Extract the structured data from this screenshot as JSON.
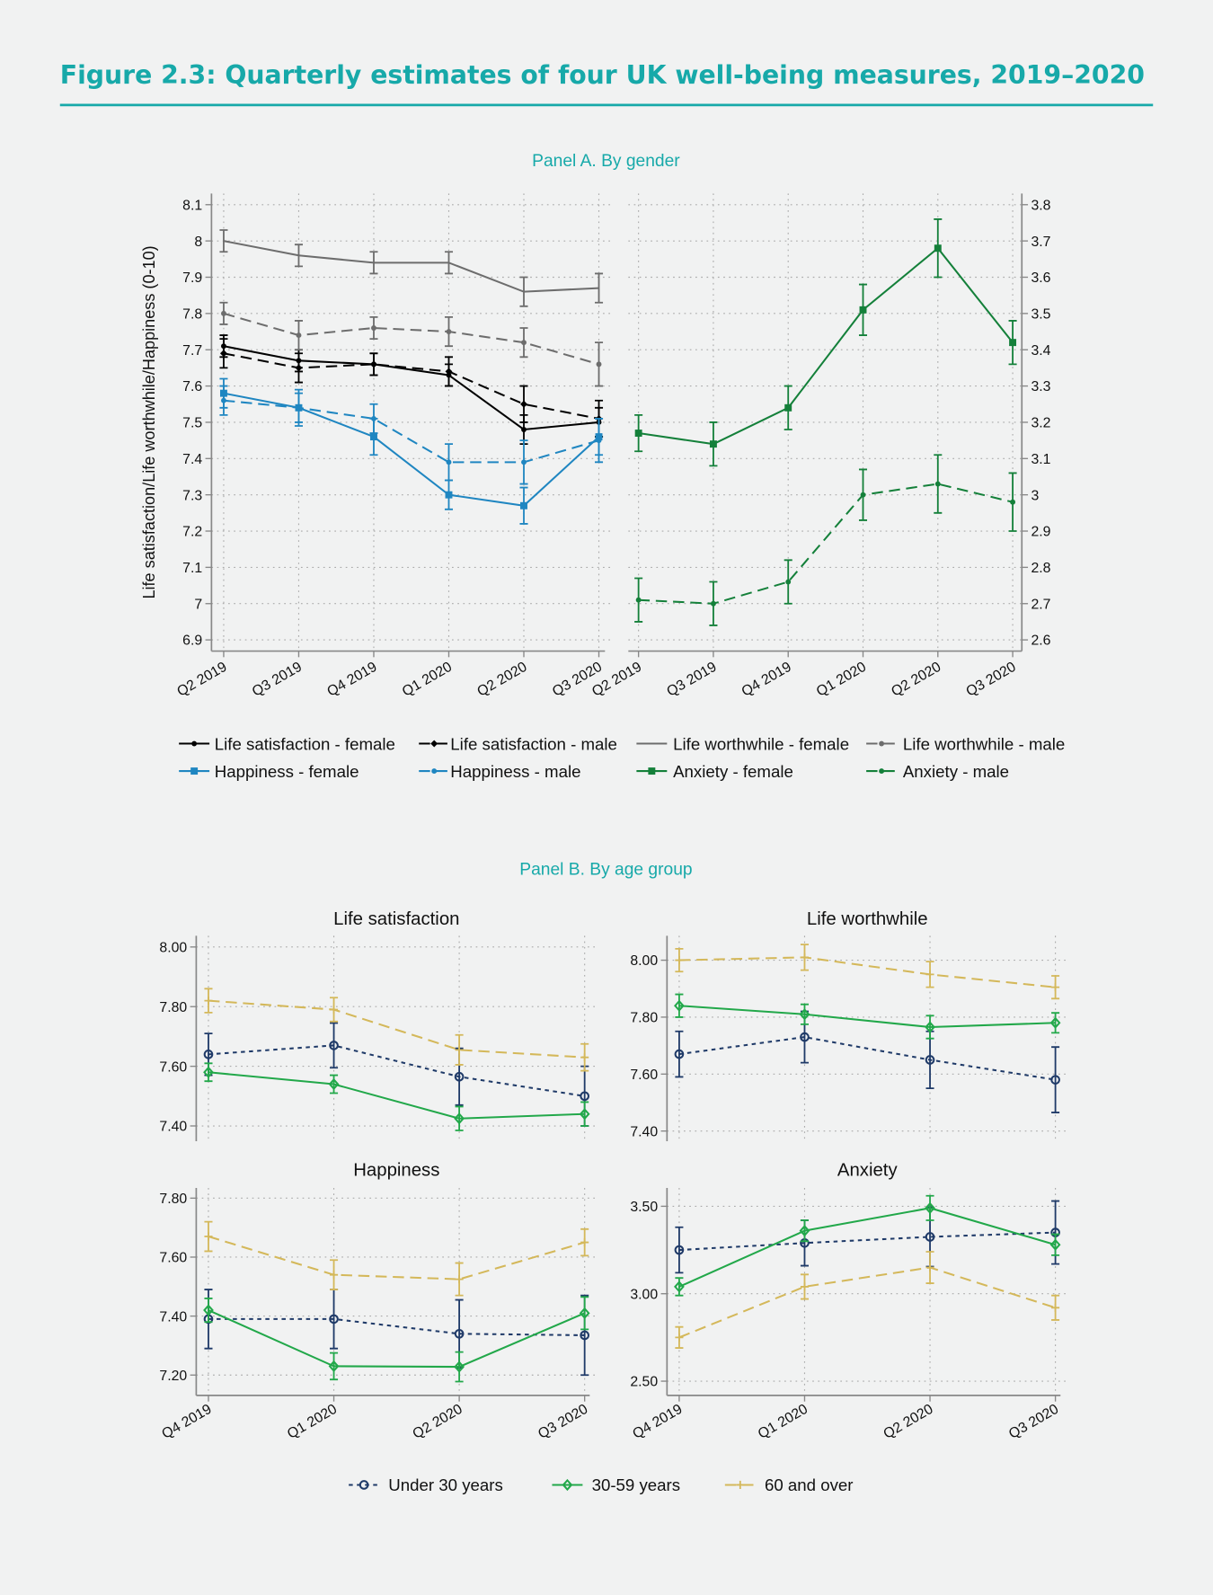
{
  "title": "Figure 2.3: Quarterly estimates of four UK well-being measures, 2019–2020",
  "panel_a_label": "Panel A. By gender",
  "panel_b_label": "Panel B. By age group",
  "colors": {
    "title": "#17a9a9",
    "background": "#f1f2f2"
  },
  "chart_data": [
    {
      "type": "line",
      "panel": "A",
      "title": "",
      "ylabel": "Life satisfaction/Life worthwhile/Happiness (0-10)",
      "yaxis_side": "left",
      "categories": [
        "Q2 2019",
        "Q3 2019",
        "Q4 2019",
        "Q1 2020",
        "Q2 2020",
        "Q3 2020"
      ],
      "yticks": [
        6.9,
        7,
        7.1,
        7.2,
        7.3,
        7.4,
        7.5,
        7.6,
        7.7,
        7.8,
        7.9,
        8,
        8.1
      ],
      "ylim": [
        6.9,
        8.1
      ],
      "grid": true,
      "series": [
        {
          "name": "Life satisfaction - female",
          "values": [
            7.71,
            7.67,
            7.66,
            7.63,
            7.48,
            7.5
          ],
          "errors": [
            0.03,
            0.03,
            0.03,
            0.03,
            0.04,
            0.04
          ],
          "color": "#000000",
          "dash": "solid",
          "marker": "dot"
        },
        {
          "name": "Life satisfaction - male",
          "values": [
            7.69,
            7.65,
            7.66,
            7.64,
            7.55,
            7.51
          ],
          "errors": [
            0.04,
            0.04,
            0.03,
            0.04,
            0.05,
            0.05
          ],
          "color": "#000000",
          "dash": "dashed",
          "marker": "diamond"
        },
        {
          "name": "Life worthwhile - female",
          "values": [
            8.0,
            7.96,
            7.94,
            7.94,
            7.86,
            7.87
          ],
          "errors": [
            0.03,
            0.03,
            0.03,
            0.03,
            0.04,
            0.04
          ],
          "color": "#6d6d6d",
          "dash": "solid",
          "marker": "none"
        },
        {
          "name": "Life worthwhile - male",
          "values": [
            7.8,
            7.74,
            7.76,
            7.75,
            7.72,
            7.66
          ],
          "errors": [
            0.03,
            0.04,
            0.03,
            0.04,
            0.04,
            0.06
          ],
          "color": "#6d6d6d",
          "dash": "dashed",
          "marker": "dot"
        },
        {
          "name": "Happiness - female",
          "values": [
            7.58,
            7.54,
            7.46,
            7.3,
            7.27,
            7.46
          ],
          "errors": [
            0.04,
            0.04,
            0.05,
            0.04,
            0.05,
            0.05
          ],
          "color": "#1f86c1",
          "dash": "solid",
          "marker": "square"
        },
        {
          "name": "Happiness - male",
          "values": [
            7.56,
            7.54,
            7.51,
            7.39,
            7.39,
            7.45
          ],
          "errors": [
            0.04,
            0.05,
            0.04,
            0.05,
            0.06,
            0.06
          ],
          "color": "#1f86c1",
          "dash": "dashed",
          "marker": "dot"
        }
      ]
    },
    {
      "type": "line",
      "panel": "A",
      "title": "",
      "yaxis_side": "right",
      "categories": [
        "Q2 2019",
        "Q3 2019",
        "Q4 2019",
        "Q1 2020",
        "Q2 2020",
        "Q3 2020"
      ],
      "yticks": [
        2.6,
        2.7,
        2.8,
        2.9,
        3,
        3.1,
        3.2,
        3.3,
        3.4,
        3.5,
        3.6,
        3.7,
        3.8
      ],
      "ylim": [
        2.6,
        3.8
      ],
      "grid": true,
      "series": [
        {
          "name": "Anxiety - female",
          "values": [
            3.17,
            3.14,
            3.24,
            3.51,
            3.68,
            3.42
          ],
          "errors": [
            0.05,
            0.06,
            0.06,
            0.07,
            0.08,
            0.06
          ],
          "color": "#14803a",
          "dash": "solid",
          "marker": "square"
        },
        {
          "name": "Anxiety - male",
          "values": [
            2.71,
            2.7,
            2.76,
            3.0,
            3.03,
            2.98
          ],
          "errors": [
            0.06,
            0.06,
            0.06,
            0.07,
            0.08,
            0.08
          ],
          "color": "#14803a",
          "dash": "dashed",
          "marker": "dot"
        }
      ]
    },
    {
      "type": "line",
      "panel": "B",
      "title": "Life satisfaction",
      "categories": [
        "Q4 2019",
        "Q1 2020",
        "Q2 2020",
        "Q3 2020"
      ],
      "yticks": [
        7.4,
        7.6,
        7.8,
        8.0
      ],
      "ytick_labels": [
        "7.40",
        "7.60",
        "7.80",
        "8.00"
      ],
      "ylim": [
        7.4,
        8.0
      ],
      "grid": true,
      "show_xlabels": false,
      "series": [
        {
          "name": "Under 30 years",
          "values": [
            7.64,
            7.67,
            7.565,
            7.5
          ],
          "errors": [
            0.07,
            0.075,
            0.095,
            0.1
          ],
          "color": "#1f3a68",
          "dash": "dotted",
          "marker": "circle-open"
        },
        {
          "name": "30-59 years",
          "values": [
            7.58,
            7.54,
            7.425,
            7.44
          ],
          "errors": [
            0.03,
            0.03,
            0.04,
            0.04
          ],
          "color": "#22a84a",
          "dash": "solid",
          "marker": "diamond-open"
        },
        {
          "name": "60 and over",
          "values": [
            7.82,
            7.79,
            7.655,
            7.63
          ],
          "errors": [
            0.04,
            0.04,
            0.05,
            0.045
          ],
          "color": "#d4b85a",
          "dash": "dashed",
          "marker": "plus"
        }
      ]
    },
    {
      "type": "line",
      "panel": "B",
      "title": "Life worthwhile",
      "categories": [
        "Q4 2019",
        "Q1 2020",
        "Q2 2020",
        "Q3 2020"
      ],
      "yticks": [
        7.4,
        7.6,
        7.8,
        8.0
      ],
      "ytick_labels": [
        "7.40",
        "7.60",
        "7.80",
        "8.00"
      ],
      "ylim": [
        7.4,
        8.0
      ],
      "grid": true,
      "show_xlabels": false,
      "series": [
        {
          "name": "Under 30 years",
          "values": [
            7.67,
            7.73,
            7.65,
            7.58
          ],
          "errors": [
            0.08,
            0.09,
            0.1,
            0.115
          ],
          "color": "#1f3a68",
          "dash": "dotted",
          "marker": "circle-open"
        },
        {
          "name": "30-59 years",
          "values": [
            7.84,
            7.81,
            7.765,
            7.78
          ],
          "errors": [
            0.04,
            0.035,
            0.04,
            0.035
          ],
          "color": "#22a84a",
          "dash": "solid",
          "marker": "diamond-open"
        },
        {
          "name": "60 and over",
          "values": [
            8.0,
            8.01,
            7.95,
            7.905
          ],
          "errors": [
            0.04,
            0.045,
            0.045,
            0.04
          ],
          "color": "#d4b85a",
          "dash": "dashed",
          "marker": "plus"
        }
      ]
    },
    {
      "type": "line",
      "panel": "B",
      "title": "Happiness",
      "categories": [
        "Q4 2019",
        "Q1 2020",
        "Q2 2020",
        "Q3 2020"
      ],
      "yticks": [
        7.2,
        7.4,
        7.6,
        7.8
      ],
      "ytick_labels": [
        "7.20",
        "7.40",
        "7.60",
        "7.80"
      ],
      "ylim": [
        7.2,
        7.8
      ],
      "grid": true,
      "show_xlabels": true,
      "series": [
        {
          "name": "Under 30 years",
          "values": [
            7.39,
            7.39,
            7.34,
            7.335
          ],
          "errors": [
            0.1,
            0.1,
            0.115,
            0.135
          ],
          "color": "#1f3a68",
          "dash": "dotted",
          "marker": "circle-open"
        },
        {
          "name": "30-59 years",
          "values": [
            7.42,
            7.23,
            7.228,
            7.41
          ],
          "errors": [
            0.04,
            0.045,
            0.05,
            0.055
          ],
          "color": "#22a84a",
          "dash": "solid",
          "marker": "diamond-open"
        },
        {
          "name": "60 and over",
          "values": [
            7.67,
            7.54,
            7.525,
            7.65
          ],
          "errors": [
            0.05,
            0.05,
            0.055,
            0.045
          ],
          "color": "#d4b85a",
          "dash": "dashed",
          "marker": "plus"
        }
      ]
    },
    {
      "type": "line",
      "panel": "B",
      "title": "Anxiety",
      "categories": [
        "Q4 2019",
        "Q1 2020",
        "Q2 2020",
        "Q3 2020"
      ],
      "yticks": [
        2.5,
        3.0,
        3.5
      ],
      "ytick_labels": [
        "2.50",
        "3.00",
        "3.50"
      ],
      "ylim": [
        2.5,
        3.5
      ],
      "grid": true,
      "show_xlabels": true,
      "series": [
        {
          "name": "Under 30 years",
          "values": [
            3.25,
            3.29,
            3.325,
            3.35
          ],
          "errors": [
            0.13,
            0.13,
            0.17,
            0.18
          ],
          "color": "#1f3a68",
          "dash": "dotted",
          "marker": "circle-open"
        },
        {
          "name": "30-59 years",
          "values": [
            3.04,
            3.36,
            3.49,
            3.28
          ],
          "errors": [
            0.05,
            0.06,
            0.07,
            0.06
          ],
          "color": "#22a84a",
          "dash": "solid",
          "marker": "diamond-open"
        },
        {
          "name": "60 and over",
          "values": [
            2.75,
            3.04,
            3.15,
            2.92
          ],
          "errors": [
            0.06,
            0.07,
            0.09,
            0.07
          ],
          "color": "#d4b85a",
          "dash": "dashed",
          "marker": "plus"
        }
      ]
    }
  ]
}
